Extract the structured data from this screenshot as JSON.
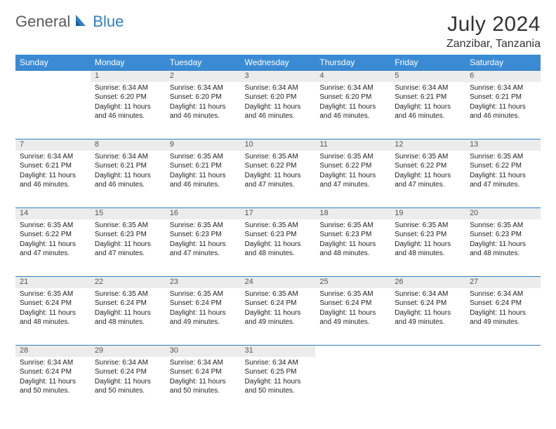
{
  "logo": {
    "word1": "General",
    "word2": "Blue"
  },
  "title": "July 2024",
  "location": "Zanzibar, Tanzania",
  "colors": {
    "header_bg": "#3b8bd4",
    "header_text": "#ffffff",
    "daynum_bg": "#ececec",
    "rule": "#2f7fc2",
    "logo_gray": "#5a5a5a",
    "logo_blue": "#2f7fc2"
  },
  "weekdays": [
    "Sunday",
    "Monday",
    "Tuesday",
    "Wednesday",
    "Thursday",
    "Friday",
    "Saturday"
  ],
  "weeks": [
    {
      "nums": [
        "",
        "1",
        "2",
        "3",
        "4",
        "5",
        "6"
      ],
      "cells": [
        null,
        {
          "sr": "6:34 AM",
          "ss": "6:20 PM",
          "dl": "11 hours and 46 minutes."
        },
        {
          "sr": "6:34 AM",
          "ss": "6:20 PM",
          "dl": "11 hours and 46 minutes."
        },
        {
          "sr": "6:34 AM",
          "ss": "6:20 PM",
          "dl": "11 hours and 46 minutes."
        },
        {
          "sr": "6:34 AM",
          "ss": "6:20 PM",
          "dl": "11 hours and 46 minutes."
        },
        {
          "sr": "6:34 AM",
          "ss": "6:21 PM",
          "dl": "11 hours and 46 minutes."
        },
        {
          "sr": "6:34 AM",
          "ss": "6:21 PM",
          "dl": "11 hours and 46 minutes."
        }
      ]
    },
    {
      "nums": [
        "7",
        "8",
        "9",
        "10",
        "11",
        "12",
        "13"
      ],
      "cells": [
        {
          "sr": "6:34 AM",
          "ss": "6:21 PM",
          "dl": "11 hours and 46 minutes."
        },
        {
          "sr": "6:34 AM",
          "ss": "6:21 PM",
          "dl": "11 hours and 46 minutes."
        },
        {
          "sr": "6:35 AM",
          "ss": "6:21 PM",
          "dl": "11 hours and 46 minutes."
        },
        {
          "sr": "6:35 AM",
          "ss": "6:22 PM",
          "dl": "11 hours and 47 minutes."
        },
        {
          "sr": "6:35 AM",
          "ss": "6:22 PM",
          "dl": "11 hours and 47 minutes."
        },
        {
          "sr": "6:35 AM",
          "ss": "6:22 PM",
          "dl": "11 hours and 47 minutes."
        },
        {
          "sr": "6:35 AM",
          "ss": "6:22 PM",
          "dl": "11 hours and 47 minutes."
        }
      ]
    },
    {
      "nums": [
        "14",
        "15",
        "16",
        "17",
        "18",
        "19",
        "20"
      ],
      "cells": [
        {
          "sr": "6:35 AM",
          "ss": "6:22 PM",
          "dl": "11 hours and 47 minutes."
        },
        {
          "sr": "6:35 AM",
          "ss": "6:23 PM",
          "dl": "11 hours and 47 minutes."
        },
        {
          "sr": "6:35 AM",
          "ss": "6:23 PM",
          "dl": "11 hours and 47 minutes."
        },
        {
          "sr": "6:35 AM",
          "ss": "6:23 PM",
          "dl": "11 hours and 48 minutes."
        },
        {
          "sr": "6:35 AM",
          "ss": "6:23 PM",
          "dl": "11 hours and 48 minutes."
        },
        {
          "sr": "6:35 AM",
          "ss": "6:23 PM",
          "dl": "11 hours and 48 minutes."
        },
        {
          "sr": "6:35 AM",
          "ss": "6:23 PM",
          "dl": "11 hours and 48 minutes."
        }
      ]
    },
    {
      "nums": [
        "21",
        "22",
        "23",
        "24",
        "25",
        "26",
        "27"
      ],
      "cells": [
        {
          "sr": "6:35 AM",
          "ss": "6:24 PM",
          "dl": "11 hours and 48 minutes."
        },
        {
          "sr": "6:35 AM",
          "ss": "6:24 PM",
          "dl": "11 hours and 48 minutes."
        },
        {
          "sr": "6:35 AM",
          "ss": "6:24 PM",
          "dl": "11 hours and 49 minutes."
        },
        {
          "sr": "6:35 AM",
          "ss": "6:24 PM",
          "dl": "11 hours and 49 minutes."
        },
        {
          "sr": "6:35 AM",
          "ss": "6:24 PM",
          "dl": "11 hours and 49 minutes."
        },
        {
          "sr": "6:34 AM",
          "ss": "6:24 PM",
          "dl": "11 hours and 49 minutes."
        },
        {
          "sr": "6:34 AM",
          "ss": "6:24 PM",
          "dl": "11 hours and 49 minutes."
        }
      ]
    },
    {
      "nums": [
        "28",
        "29",
        "30",
        "31",
        "",
        "",
        ""
      ],
      "cells": [
        {
          "sr": "6:34 AM",
          "ss": "6:24 PM",
          "dl": "11 hours and 50 minutes."
        },
        {
          "sr": "6:34 AM",
          "ss": "6:24 PM",
          "dl": "11 hours and 50 minutes."
        },
        {
          "sr": "6:34 AM",
          "ss": "6:24 PM",
          "dl": "11 hours and 50 minutes."
        },
        {
          "sr": "6:34 AM",
          "ss": "6:25 PM",
          "dl": "11 hours and 50 minutes."
        },
        null,
        null,
        null
      ]
    }
  ],
  "labels": {
    "sunrise": "Sunrise:",
    "sunset": "Sunset:",
    "daylight": "Daylight:"
  }
}
